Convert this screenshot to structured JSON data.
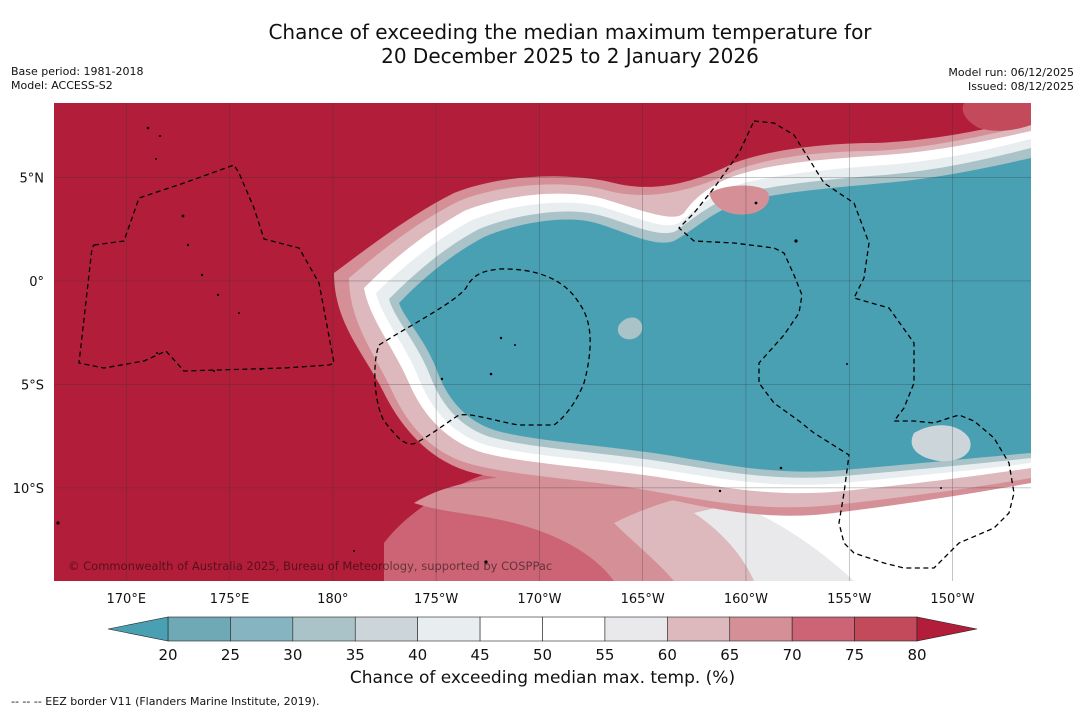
{
  "header": {
    "title_line1": "Chance of exceeding the median maximum temperature for",
    "title_line2": "20 December 2025 to 2 January 2026",
    "base_period": "Base period: 1981-2018",
    "model": "Model: ACCESS-S2",
    "model_run": "Model run: 06/12/2025",
    "issued": "Issued: 08/12/2025"
  },
  "map": {
    "copyright": "© Commonwealth of Australia 2025, Bureau of Meteorology, supported by COSPPac",
    "lon_labels": [
      "170°E",
      "175°E",
      "180°",
      "175°W",
      "170°W",
      "165°W",
      "160°W",
      "155°W",
      "150°W"
    ],
    "lon_values": [
      170,
      175,
      180,
      185,
      190,
      195,
      200,
      205,
      210
    ],
    "lat_labels": [
      "5°N",
      "0°",
      "5°S",
      "10°S"
    ],
    "lat_values": [
      5,
      0,
      -5,
      -10
    ],
    "lon_range": [
      166.5,
      213.8
    ],
    "lat_range": [
      -14.5,
      8.6
    ],
    "colors": {
      "c80": "#b21e3a",
      "c75": "#c34a5b",
      "c70": "#cc6475",
      "c65": "#d58f97",
      "c60": "#ddb8bd",
      "c55": "#e9e9ec",
      "c50": "#ffffff",
      "c45": "#ffffff",
      "c40": "#e8edf0",
      "c35": "#ccd6da",
      "c30": "#a9c3c9",
      "c25": "#86b4c0",
      "c20": "#6ea9b5",
      "c_lt20": "#4aa0b3"
    }
  },
  "colorbar": {
    "title": "Chance of exceeding median max. temp. (%)",
    "ticks": [
      "20",
      "25",
      "30",
      "35",
      "40",
      "45",
      "50",
      "55",
      "60",
      "65",
      "70",
      "75",
      "80"
    ],
    "segment_colors": [
      "#6ea9b5",
      "#86b4c0",
      "#a9c3c9",
      "#ccd6da",
      "#e8edf0",
      "#ffffff",
      "#ffffff",
      "#e9e9ec",
      "#ddb8bd",
      "#d58f97",
      "#cc6475",
      "#c34a5b"
    ],
    "low_extend_color": "#4aa0b3",
    "high_extend_color": "#b21e3a"
  },
  "footnote": "--  --  -- EEZ border V11 (Flanders Marine Institute, 2019)."
}
